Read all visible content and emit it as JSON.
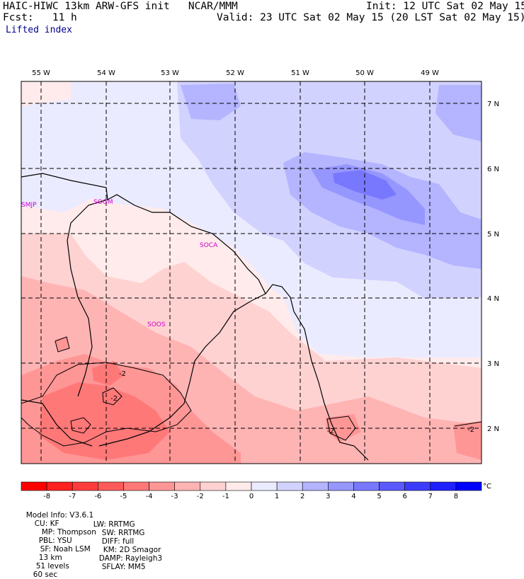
{
  "header": {
    "title": "HAIC-HIWC 13km ARW-GFS init   NCAR/MMM",
    "init": "Init: 12 UTC Sat 02 May 15",
    "fcst": "Fcst:   11 h",
    "valid": "Valid: 23 UTC Sat 02 May 15 (20 LST Sat 02 May 15)",
    "field": "Lifted index"
  },
  "axes": {
    "lon_labels": [
      "55 W",
      "54 W",
      "53 W",
      "52 W",
      "51 W",
      "50 W",
      "49 W"
    ],
    "lat_labels": [
      "7 N",
      "6 N",
      "5 N",
      "4 N",
      "3 N",
      "2 N"
    ]
  },
  "stations": [
    "SMJP",
    "SOGM",
    "SOCA",
    "SOOS"
  ],
  "contour_labels": [
    "-2",
    "-2",
    "-2",
    "-2"
  ],
  "colorbar": {
    "ticks": [
      "-8",
      "-7",
      "-6",
      "-5",
      "-4",
      "-3",
      "-2",
      "-1",
      "0",
      "1",
      "2",
      "3",
      "4",
      "5",
      "6",
      "7",
      "8"
    ],
    "unit": "°C",
    "colors": [
      "#ff0000",
      "#ff2020",
      "#ff3c3c",
      "#ff5a5a",
      "#ff7878",
      "#ff9696",
      "#ffb4b4",
      "#ffd2d2",
      "#ffebeb",
      "#ebebff",
      "#d2d2ff",
      "#b4b4ff",
      "#9696ff",
      "#7878ff",
      "#5a5aff",
      "#3c3cff",
      "#2020ff",
      "#0000ff"
    ]
  },
  "footer": {
    "line1": [
      "Model Info: V3.6.1",
      "CU: KF",
      "MP: Thompson",
      "PBL: YSU",
      "SF: Noah LSM",
      "13 km",
      "51 levels",
      "60 sec"
    ],
    "line2": [
      "LW: RRTMG",
      "SW: RRTMG",
      "DIFF: full",
      "KM: 2D Smagor",
      "DAMP: Rayleigh3",
      "SFLAY: MM5"
    ]
  }
}
